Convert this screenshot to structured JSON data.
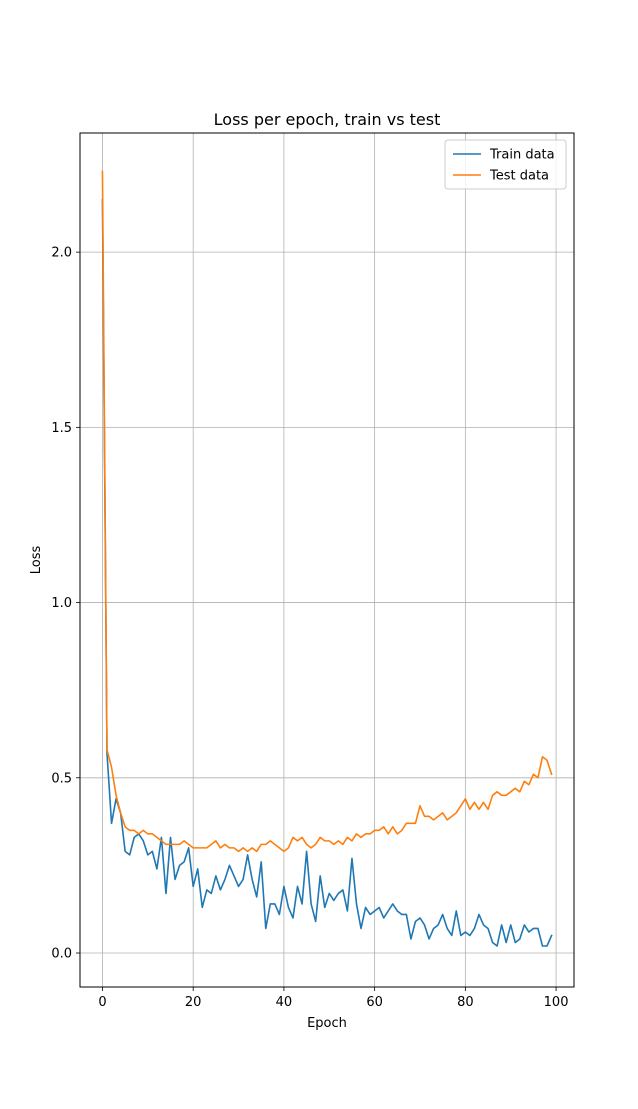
{
  "chart_data": {
    "type": "line",
    "title": "Loss per epoch, train vs test",
    "xlabel": "Epoch",
    "ylabel": "Loss",
    "xlim": [
      -4.95,
      103.95
    ],
    "ylim": [
      -0.097,
      2.34
    ],
    "xticks": [
      0,
      20,
      40,
      60,
      80,
      100
    ],
    "yticks": [
      0.0,
      0.5,
      1.0,
      1.5,
      2.0
    ],
    "xtick_labels": [
      "0",
      "20",
      "40",
      "60",
      "80",
      "100"
    ],
    "ytick_labels": [
      "0.0",
      "0.5",
      "1.0",
      "1.5",
      "2.0"
    ],
    "grid": true,
    "legend_position": "top-right",
    "series": [
      {
        "name": "Train data",
        "color": "#1f77b4",
        "values": [
          2.15,
          0.57,
          0.37,
          0.44,
          0.4,
          0.29,
          0.28,
          0.33,
          0.34,
          0.32,
          0.28,
          0.29,
          0.24,
          0.33,
          0.17,
          0.33,
          0.21,
          0.25,
          0.26,
          0.3,
          0.19,
          0.24,
          0.13,
          0.18,
          0.17,
          0.22,
          0.18,
          0.21,
          0.25,
          0.22,
          0.19,
          0.21,
          0.28,
          0.21,
          0.16,
          0.26,
          0.07,
          0.14,
          0.14,
          0.11,
          0.19,
          0.13,
          0.1,
          0.19,
          0.14,
          0.29,
          0.14,
          0.09,
          0.22,
          0.13,
          0.17,
          0.15,
          0.17,
          0.18,
          0.12,
          0.27,
          0.14,
          0.07,
          0.13,
          0.11,
          0.12,
          0.13,
          0.1,
          0.12,
          0.14,
          0.12,
          0.11,
          0.11,
          0.04,
          0.09,
          0.1,
          0.08,
          0.04,
          0.07,
          0.08,
          0.11,
          0.07,
          0.05,
          0.12,
          0.05,
          0.06,
          0.05,
          0.07,
          0.11,
          0.08,
          0.07,
          0.03,
          0.02,
          0.08,
          0.03,
          0.08,
          0.03,
          0.04,
          0.08,
          0.06,
          0.07,
          0.07,
          0.02,
          0.02,
          0.05
        ]
      },
      {
        "name": "Test data",
        "color": "#ff7f0e",
        "values": [
          2.23,
          0.58,
          0.53,
          0.45,
          0.4,
          0.36,
          0.35,
          0.35,
          0.34,
          0.35,
          0.34,
          0.34,
          0.33,
          0.32,
          0.31,
          0.31,
          0.31,
          0.31,
          0.32,
          0.31,
          0.3,
          0.3,
          0.3,
          0.3,
          0.31,
          0.32,
          0.3,
          0.31,
          0.3,
          0.3,
          0.29,
          0.3,
          0.29,
          0.3,
          0.29,
          0.31,
          0.31,
          0.32,
          0.31,
          0.3,
          0.29,
          0.3,
          0.33,
          0.32,
          0.33,
          0.31,
          0.3,
          0.31,
          0.33,
          0.32,
          0.32,
          0.31,
          0.32,
          0.31,
          0.33,
          0.32,
          0.34,
          0.33,
          0.34,
          0.34,
          0.35,
          0.35,
          0.36,
          0.34,
          0.36,
          0.34,
          0.35,
          0.37,
          0.37,
          0.37,
          0.42,
          0.39,
          0.39,
          0.38,
          0.39,
          0.4,
          0.38,
          0.39,
          0.4,
          0.42,
          0.44,
          0.41,
          0.43,
          0.41,
          0.43,
          0.41,
          0.45,
          0.46,
          0.45,
          0.45,
          0.46,
          0.47,
          0.46,
          0.49,
          0.48,
          0.51,
          0.5,
          0.56,
          0.55,
          0.51
        ]
      }
    ]
  }
}
